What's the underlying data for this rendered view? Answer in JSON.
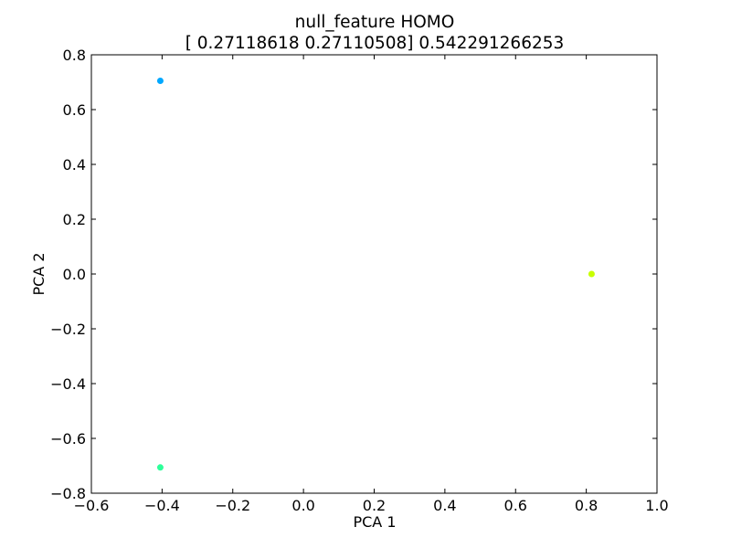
{
  "chart_data": {
    "type": "scatter",
    "title": "null_feature HOMO",
    "subtitle": "[ 0.27118618  0.27110508] 0.542291266253",
    "xlabel": "PCA 1",
    "ylabel": "PCA 2",
    "xlim": [
      -0.6,
      1.0
    ],
    "ylim": [
      -0.8,
      0.8
    ],
    "x_ticks": [
      -0.6,
      -0.4,
      -0.2,
      0.0,
      0.2,
      0.4,
      0.6,
      0.8,
      1.0
    ],
    "x_tick_labels": [
      "−0.6",
      "−0.4",
      "−0.2",
      "0.0",
      "0.2",
      "0.4",
      "0.6",
      "0.8",
      "1.0"
    ],
    "y_ticks": [
      -0.8,
      -0.6,
      -0.4,
      -0.2,
      0.0,
      0.2,
      0.4,
      0.6,
      0.8
    ],
    "y_tick_labels": [
      "−0.8",
      "−0.6",
      "−0.4",
      "−0.2",
      "0.0",
      "0.2",
      "0.4",
      "0.6",
      "0.8"
    ],
    "grid": false,
    "points": [
      {
        "x": -0.405,
        "y": 0.705,
        "color": "#00a8ff"
      },
      {
        "x": -0.405,
        "y": -0.706,
        "color": "#2eff9a"
      },
      {
        "x": 0.815,
        "y": 0.0,
        "color": "#c8ff00"
      }
    ]
  }
}
